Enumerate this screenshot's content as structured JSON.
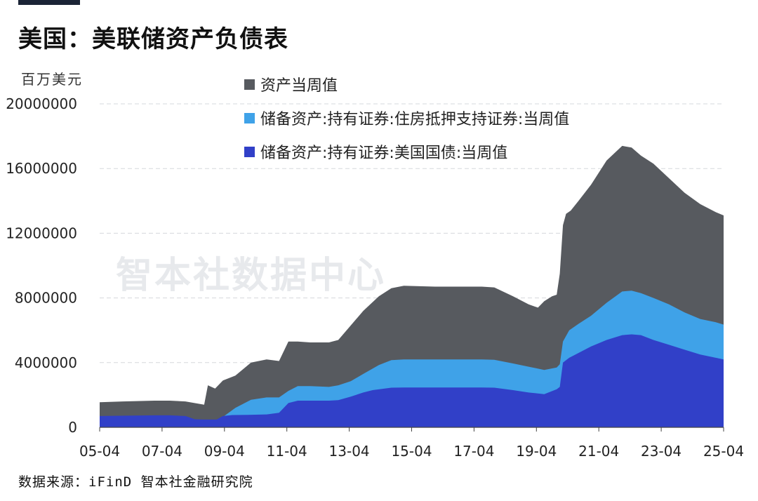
{
  "title": "美国：美联储资产负债表",
  "unit": "百万美元",
  "watermark": "智本社数据中心",
  "source": "数据来源：iFinD 智本社金融研究院",
  "colors": {
    "total": "#575a5f",
    "mbs": "#3fa2e8",
    "treasury": "#3140c8",
    "top_bar": "#1b2436"
  },
  "chart_data": {
    "type": "area",
    "title": "美国：美联储资产负债表",
    "ylabel": "百万美元",
    "xlabel": "",
    "ylim": [
      0,
      20000000
    ],
    "xlim": [
      2005.25,
      2025.25
    ],
    "y_ticks": [
      0,
      4000000,
      8000000,
      12000000,
      16000000,
      20000000
    ],
    "y_tick_labels": [
      "0",
      "4000000",
      "8000000",
      "12000000",
      "16000000",
      "20000000"
    ],
    "x_ticks": [
      2005.25,
      2007.25,
      2009.25,
      2011.25,
      2013.25,
      2015.25,
      2017.25,
      2019.25,
      2021.25,
      2023.25,
      2025.25
    ],
    "x_tick_labels": [
      "05-04",
      "07-04",
      "09-04",
      "11-04",
      "13-04",
      "15-04",
      "17-04",
      "19-04",
      "21-04",
      "23-04",
      "25-04"
    ],
    "legend_position": "top",
    "grid": "horizontal dashed",
    "series": [
      {
        "name": "资产当周值",
        "color": "#575a5f",
        "x": [
          2005.25,
          2006.0,
          2007.0,
          2007.5,
          2008.0,
          2008.6,
          2008.72,
          2008.95,
          2009.2,
          2009.6,
          2010.1,
          2010.6,
          2011.0,
          2011.3,
          2011.6,
          2012.0,
          2012.6,
          2012.9,
          2013.3,
          2013.7,
          2014.2,
          2014.6,
          2015.0,
          2016.0,
          2017.0,
          2017.5,
          2017.9,
          2018.5,
          2019.0,
          2019.3,
          2019.5,
          2019.75,
          2019.9,
          2020.0,
          2020.1,
          2020.2,
          2020.35,
          2020.6,
          2021.0,
          2021.5,
          2022.0,
          2022.3,
          2022.6,
          2023.0,
          2023.5,
          2024.0,
          2024.5,
          2025.0,
          2025.25
        ],
        "y": [
          1550000,
          1600000,
          1650000,
          1650000,
          1600000,
          1400000,
          2600000,
          2400000,
          2900000,
          3200000,
          4000000,
          4200000,
          4100000,
          5300000,
          5300000,
          5250000,
          5250000,
          5400000,
          6300000,
          7200000,
          8100000,
          8600000,
          8750000,
          8700000,
          8700000,
          8700000,
          8650000,
          8100000,
          7600000,
          7400000,
          7800000,
          8100000,
          8200000,
          9500000,
          12500000,
          13200000,
          13400000,
          14000000,
          15000000,
          16500000,
          17400000,
          17300000,
          16800000,
          16300000,
          15400000,
          14500000,
          13800000,
          13300000,
          13100000
        ]
      },
      {
        "name": "储备资产:持有证券:住房抵押支持证券:当周值",
        "color": "#3fa2e8",
        "x": [
          2005.25,
          2008.8,
          2009.1,
          2009.6,
          2010.1,
          2010.6,
          2011.0,
          2011.3,
          2011.6,
          2012.0,
          2012.6,
          2012.9,
          2013.3,
          2013.7,
          2014.2,
          2014.6,
          2015.0,
          2016.0,
          2017.0,
          2017.5,
          2017.9,
          2018.5,
          2019.0,
          2019.5,
          2019.9,
          2020.0,
          2020.1,
          2020.3,
          2020.6,
          2021.0,
          2021.5,
          2022.0,
          2022.3,
          2022.6,
          2023.0,
          2023.5,
          2024.0,
          2024.5,
          2025.0,
          2025.25
        ],
        "y": [
          0,
          0,
          500000,
          1200000,
          1700000,
          1850000,
          1850000,
          2250000,
          2550000,
          2550000,
          2500000,
          2600000,
          2850000,
          3300000,
          3850000,
          4150000,
          4200000,
          4200000,
          4200000,
          4200000,
          4180000,
          3950000,
          3750000,
          3550000,
          3700000,
          3900000,
          5300000,
          6000000,
          6400000,
          6900000,
          7700000,
          8400000,
          8450000,
          8300000,
          8000000,
          7600000,
          7100000,
          6700000,
          6500000,
          6350000
        ]
      },
      {
        "name": "储备资产:持有证券:美国国债:当周值",
        "color": "#3140c8",
        "x": [
          2005.25,
          2007.0,
          2007.5,
          2008.0,
          2008.3,
          2008.6,
          2009.0,
          2009.2,
          2009.5,
          2010.0,
          2010.6,
          2011.0,
          2011.3,
          2011.6,
          2012.0,
          2012.6,
          2012.9,
          2013.3,
          2013.7,
          2014.0,
          2014.6,
          2015.0,
          2016.0,
          2017.0,
          2017.5,
          2017.9,
          2018.5,
          2019.0,
          2019.5,
          2019.9,
          2020.0,
          2020.1,
          2020.3,
          2020.6,
          2021.0,
          2021.5,
          2022.0,
          2022.3,
          2022.6,
          2023.0,
          2023.5,
          2024.0,
          2024.5,
          2025.0,
          2025.25
        ],
        "y": [
          700000,
          740000,
          740000,
          700000,
          500000,
          480000,
          480000,
          700000,
          760000,
          770000,
          800000,
          900000,
          1500000,
          1650000,
          1650000,
          1650000,
          1680000,
          1900000,
          2150000,
          2300000,
          2450000,
          2460000,
          2460000,
          2460000,
          2460000,
          2450000,
          2300000,
          2150000,
          2050000,
          2350000,
          2500000,
          4000000,
          4300000,
          4600000,
          5000000,
          5400000,
          5700000,
          5750000,
          5700000,
          5400000,
          5100000,
          4800000,
          4500000,
          4300000,
          4200000
        ]
      }
    ]
  }
}
